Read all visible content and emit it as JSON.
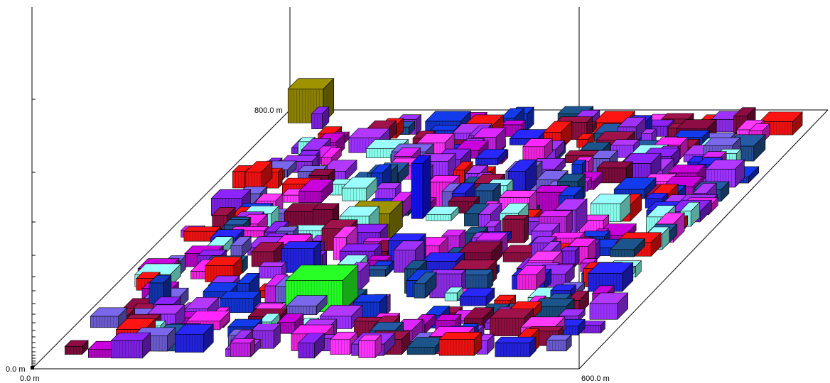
{
  "axis_labels": {
    "height_origin": "0.0 m",
    "x_origin": "0.0 m",
    "x_end": "600.0 m",
    "y_end": "800.0 m"
  }
}
